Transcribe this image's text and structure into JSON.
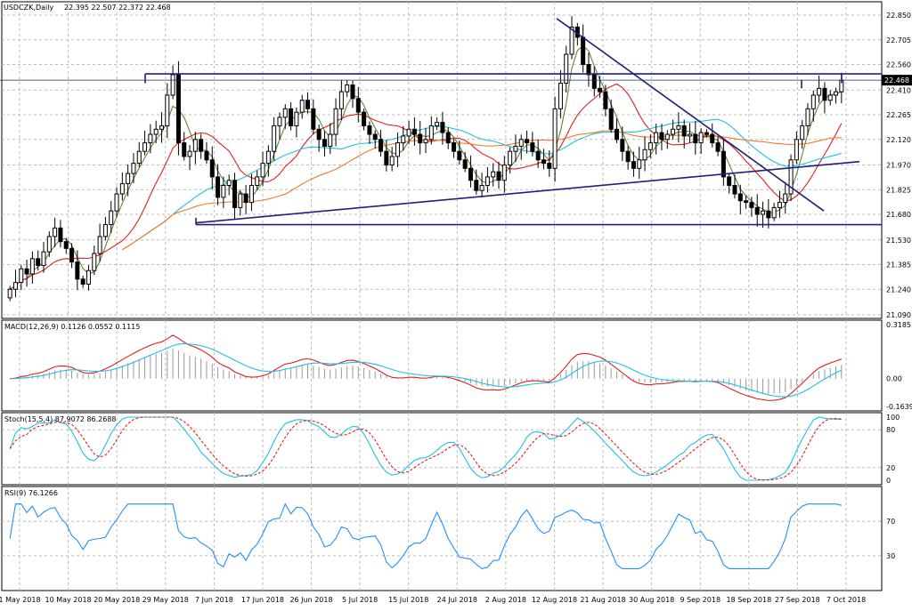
{
  "chart_data": [
    {
      "type": "candlestick",
      "title": "USDCZK,Daily",
      "ohlc_text": "22.395 22.507 22.372 22.468",
      "current_price": 22.468,
      "current_price_label": "22.468",
      "y_ticks": [
        "22.850",
        "22.705",
        "22.560",
        "22.410",
        "22.265",
        "22.120",
        "21.970",
        "21.825",
        "21.680",
        "21.530",
        "21.385",
        "21.240",
        "21.090"
      ],
      "ylim": [
        21.09,
        22.85
      ],
      "x_ticks": [
        "1 May 2018",
        "10 May 2018",
        "20 May 2018",
        "29 May 2018",
        "7 Jun 2018",
        "17 Jun 2018",
        "26 Jun 2018",
        "5 Jul 2018",
        "15 Jul 2018",
        "24 Jul 2018",
        "2 Aug 2018",
        "12 Aug 2018",
        "21 Aug 2018",
        "30 Aug 2018",
        "9 Sep 2018",
        "18 Sep 2018",
        "27 Sep 2018",
        "7 Oct 2018"
      ],
      "closes": [
        21.24,
        21.28,
        21.36,
        21.33,
        21.42,
        21.38,
        21.46,
        21.55,
        21.6,
        21.52,
        21.48,
        21.4,
        21.3,
        21.27,
        21.35,
        21.45,
        21.55,
        21.62,
        21.7,
        21.8,
        21.86,
        21.92,
        21.98,
        22.05,
        22.1,
        22.15,
        22.18,
        22.2,
        22.38,
        22.5,
        22.1,
        22.02,
        22.05,
        22.12,
        22.05,
        22.0,
        21.9,
        21.78,
        21.85,
        21.88,
        21.72,
        21.8,
        21.75,
        21.85,
        21.9,
        21.98,
        22.05,
        22.2,
        22.25,
        22.3,
        22.2,
        22.28,
        22.35,
        22.3,
        22.18,
        22.12,
        22.08,
        22.15,
        22.3,
        22.4,
        22.44,
        22.36,
        22.28,
        22.2,
        22.15,
        22.12,
        22.05,
        21.97,
        22.02,
        22.1,
        22.14,
        22.18,
        22.15,
        22.1,
        22.12,
        22.2,
        22.22,
        22.16,
        22.1,
        22.05,
        22.0,
        21.95,
        21.88,
        21.82,
        21.85,
        21.9,
        21.93,
        21.88,
        21.97,
        22.05,
        22.08,
        22.12,
        22.1,
        22.05,
        22.0,
        21.98,
        21.95,
        22.3,
        22.45,
        22.62,
        22.78,
        22.72,
        22.56,
        22.5,
        22.42,
        22.4,
        22.3,
        22.18,
        22.12,
        22.05,
        21.99,
        21.95,
        22.0,
        22.06,
        22.1,
        22.16,
        22.12,
        22.15,
        22.18,
        22.2,
        22.14,
        22.15,
        22.1,
        22.16,
        22.15,
        22.1,
        22.05,
        21.9,
        21.85,
        21.8,
        21.76,
        21.75,
        21.72,
        21.68,
        21.7,
        21.66,
        21.72,
        21.75,
        21.8,
        22.0,
        22.12,
        22.2,
        22.3,
        22.38,
        22.42,
        22.35,
        22.38,
        22.4,
        22.468
      ],
      "overlays": [
        {
          "name": "SMA fast",
          "color": "#5a8a2e"
        },
        {
          "name": "SMA mid",
          "color": "#e0201c"
        },
        {
          "name": "SMA slow",
          "color": "#1ec1e6"
        },
        {
          "name": "SMA long",
          "color": "#f07a28"
        }
      ],
      "colors": {
        "candle": "#000000",
        "bull_fill": "#ffffff",
        "bear_fill": "#000000",
        "trendline": "#20207a",
        "grid": "#bbbbbb",
        "price_tag": "#000000"
      }
    },
    {
      "type": "line",
      "title": "MACD(12,26,9) 0.1126 0.0552 0.1115",
      "y_ticks": [
        "0.3185",
        "0.00",
        "-0.1639"
      ],
      "ylim": [
        -0.1639,
        0.3185
      ],
      "series": [
        {
          "name": "MACD",
          "color": "#e0201c"
        },
        {
          "name": "Signal",
          "color": "#1ec1e6"
        }
      ],
      "histogram_color": "#999999"
    },
    {
      "type": "line",
      "title": "Stoch(15,5,4) 87.9072 86.2688",
      "y_ticks": [
        "100",
        "80",
        "20",
        "0"
      ],
      "ylim": [
        0,
        100
      ],
      "series": [
        {
          "name": "%K",
          "color": "#1ec1e6"
        },
        {
          "name": "%D",
          "color": "#e0201c"
        }
      ]
    },
    {
      "type": "line",
      "title": "RSI(9) 76.1266",
      "y_ticks": [
        "70",
        "30"
      ],
      "ylim": [
        0,
        100
      ],
      "series": [
        {
          "name": "RSI",
          "color": "#1e90ff"
        }
      ]
    }
  ]
}
